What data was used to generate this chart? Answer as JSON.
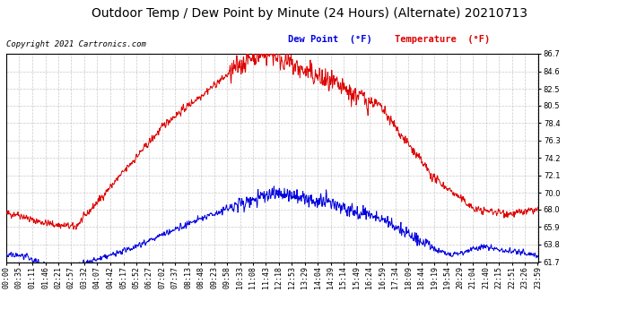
{
  "title": "Outdoor Temp / Dew Point by Minute (24 Hours) (Alternate) 20210713",
  "copyright": "Copyright 2021 Cartronics.com",
  "legend_dew": "Dew Point  (°F)",
  "legend_temp": "Temperature  (°F)",
  "dew_color": "#0000dd",
  "temp_color": "#dd0000",
  "ylim_min": 61.7,
  "ylim_max": 86.7,
  "yticks": [
    61.7,
    63.8,
    65.9,
    68.0,
    70.0,
    72.1,
    74.2,
    76.3,
    78.4,
    80.5,
    82.5,
    84.6,
    86.7
  ],
  "bg_color": "#ffffff",
  "plot_bg_color": "#ffffff",
  "grid_color": "#bbbbbb",
  "title_fontsize": 10,
  "copyright_fontsize": 6.5,
  "legend_fontsize": 7.5,
  "tick_fontsize": 6,
  "total_minutes": 1440,
  "x_tick_positions": [
    0,
    35,
    71,
    106,
    141,
    176,
    211,
    246,
    281,
    317,
    352,
    387,
    422,
    457,
    492,
    527,
    562,
    597,
    632,
    667,
    702,
    737,
    772,
    807,
    842,
    877,
    912,
    947,
    982,
    1017,
    1052,
    1087,
    1122,
    1157,
    1192,
    1227,
    1262,
    1297,
    1332,
    1367,
    1402,
    1437
  ],
  "x_tick_labels": [
    "00:00",
    "00:35",
    "01:11",
    "01:46",
    "02:21",
    "02:57",
    "03:32",
    "04:07",
    "04:42",
    "05:17",
    "05:52",
    "06:27",
    "07:02",
    "07:37",
    "08:13",
    "08:48",
    "09:23",
    "09:58",
    "10:33",
    "11:08",
    "11:43",
    "12:18",
    "12:53",
    "13:29",
    "14:04",
    "14:39",
    "15:14",
    "15:49",
    "16:24",
    "16:59",
    "17:34",
    "18:09",
    "18:44",
    "19:19",
    "19:54",
    "20:29",
    "21:04",
    "21:40",
    "22:15",
    "22:51",
    "23:26",
    "23:59"
  ]
}
